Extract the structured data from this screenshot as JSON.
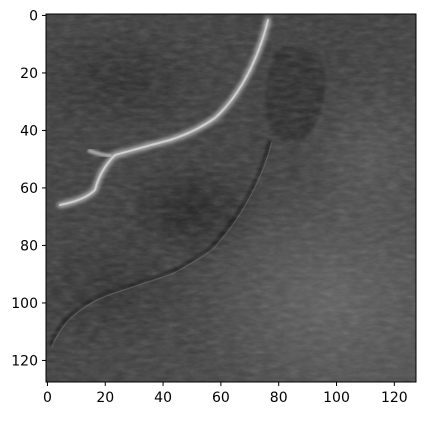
{
  "figure": {
    "image": {
      "description_key": "grayscale-terrain-hillshade",
      "rows": 128,
      "cols": 128,
      "colormap": "gray"
    },
    "x_axis": {
      "range": [
        0,
        127
      ],
      "tick_labels": [
        "0",
        "20",
        "40",
        "60",
        "80",
        "100",
        "120"
      ],
      "tick_values": [
        0,
        20,
        40,
        60,
        80,
        100,
        120
      ]
    },
    "y_axis": {
      "range": [
        0,
        127
      ],
      "tick_labels": [
        "0",
        "20",
        "40",
        "60",
        "80",
        "100",
        "120"
      ],
      "tick_values": [
        0,
        20,
        40,
        60,
        80,
        100,
        120
      ],
      "inverted": true
    }
  }
}
